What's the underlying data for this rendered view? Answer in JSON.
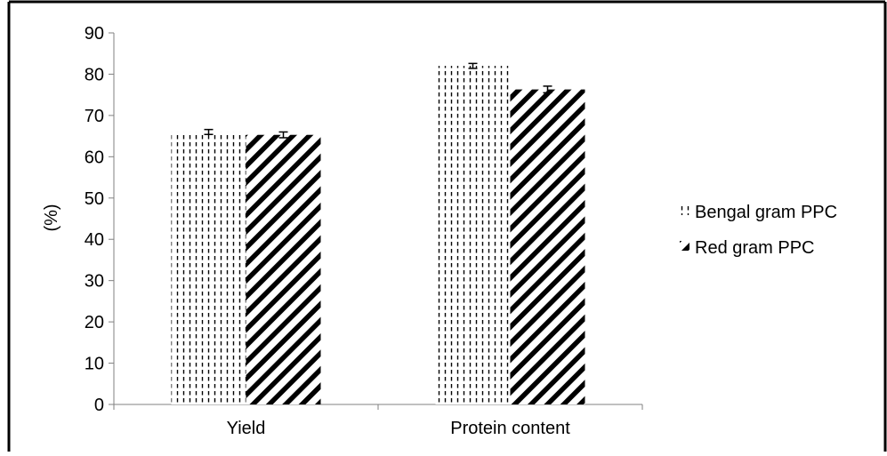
{
  "chart_data": {
    "type": "bar",
    "categories": [
      "Yield",
      "Protein content"
    ],
    "series": [
      {
        "name": "Bengal gram PPC",
        "values": [
          66.0,
          82.0
        ],
        "errors": [
          0.6,
          0.6
        ],
        "pattern": "vertical-dashes"
      },
      {
        "name": "Red gram PPC",
        "values": [
          65.3,
          76.3
        ],
        "errors": [
          0.7,
          0.8
        ],
        "pattern": "diagonal-stripes"
      }
    ],
    "title": "",
    "xlabel": "",
    "ylabel": "(%)",
    "ylim": [
      0,
      90
    ],
    "yticks": [
      0,
      10,
      20,
      30,
      40,
      50,
      60,
      70,
      80,
      90
    ],
    "grid": false,
    "legend": "right",
    "error_bars": true
  },
  "colors": {
    "ink": "#000000",
    "background": "#ffffff"
  }
}
